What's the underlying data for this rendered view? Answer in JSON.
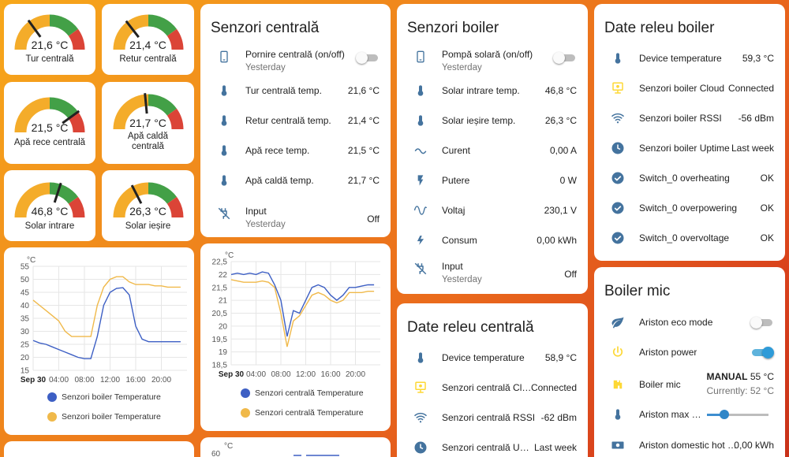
{
  "gauges": [
    {
      "value": "21,6 °C",
      "name": "Tur centrală",
      "level": 0.3
    },
    {
      "value": "21,4 °C",
      "name": "Retur centrală",
      "level": 0.29
    },
    {
      "value": "21,5 °C",
      "name": "Apă rece centrală",
      "level": 0.8
    },
    {
      "value": "21,7 °C",
      "name": "Apă caldă centrală",
      "level": 0.47
    },
    {
      "value": "46,8 °C",
      "name": "Solar intrare",
      "level": 0.6
    },
    {
      "value": "26,3 °C",
      "name": "Solar ieșire",
      "level": 0.35
    }
  ],
  "senzori_centrala": {
    "title": "Senzori centrală",
    "rows": [
      {
        "icon": "phone-icon",
        "name": "Pornire centrală (on/off)",
        "sub": "Yesterday",
        "toggle": "off"
      },
      {
        "icon": "thermometer-icon",
        "name": "Tur centrală temp.",
        "value": "21,6 °C"
      },
      {
        "icon": "thermometer-icon",
        "name": "Retur centrală temp.",
        "value": "21,4 °C"
      },
      {
        "icon": "thermometer-icon",
        "name": "Apă rece temp.",
        "value": "21,5 °C"
      },
      {
        "icon": "thermometer-icon",
        "name": "Apă caldă temp.",
        "value": "21,7 °C"
      },
      {
        "icon": "power-plug-off-icon",
        "name": "Input",
        "sub": "Yesterday",
        "value": "Off"
      }
    ]
  },
  "senzori_boiler": {
    "title": "Senzori boiler",
    "rows": [
      {
        "icon": "phone-icon",
        "name": "Pompă solară (on/off)",
        "sub": "Yesterday",
        "toggle": "off"
      },
      {
        "icon": "thermometer-icon",
        "name": "Solar intrare temp.",
        "value": "46,8 °C"
      },
      {
        "icon": "thermometer-icon",
        "name": "Solar ieșire temp.",
        "value": "26,3 °C"
      },
      {
        "icon": "current-ac-icon",
        "name": "Curent",
        "value": "0,00 A"
      },
      {
        "icon": "flash-icon",
        "name": "Putere",
        "value": "0 W"
      },
      {
        "icon": "sine-wave-icon",
        "name": "Voltaj",
        "value": "230,1 V"
      },
      {
        "icon": "lightning-icon",
        "name": "Consum",
        "value": "0,00 kWh"
      },
      {
        "icon": "power-plug-off-icon",
        "name": "Input",
        "sub": "Yesterday",
        "value": "Off"
      }
    ]
  },
  "date_releu_centrala": {
    "title": "Date releu centrală",
    "rows": [
      {
        "icon": "thermometer-icon",
        "name": "Device temperature",
        "value": "58,9 °C"
      },
      {
        "icon": "cloud-monitor-icon",
        "name": "Senzori centrală Cloud",
        "value": "Connected"
      },
      {
        "icon": "wifi-icon",
        "name": "Senzori centrală RSSI",
        "value": "-62 dBm"
      },
      {
        "icon": "clock-icon",
        "name": "Senzori centrală Upti…",
        "value": "Last week"
      }
    ]
  },
  "date_releu_boiler": {
    "title": "Date releu boiler",
    "rows": [
      {
        "icon": "thermometer-icon",
        "name": "Device temperature",
        "value": "59,3 °C"
      },
      {
        "icon": "cloud-monitor-icon",
        "name": "Senzori boiler Cloud",
        "value": "Connected"
      },
      {
        "icon": "wifi-icon",
        "name": "Senzori boiler RSSI",
        "value": "-56 dBm"
      },
      {
        "icon": "clock-icon",
        "name": "Senzori boiler Uptime",
        "value": "Last week"
      },
      {
        "icon": "check-circle-icon",
        "name": "Switch_0 overheating",
        "value": "OK"
      },
      {
        "icon": "check-circle-icon",
        "name": "Switch_0 overpowering",
        "value": "OK"
      },
      {
        "icon": "check-circle-icon",
        "name": "Switch_0 overvoltage",
        "value": "OK"
      }
    ]
  },
  "boiler_mic": {
    "title": "Boiler mic",
    "eco_label": "Ariston eco mode",
    "eco_toggle": "off",
    "power_label": "Ariston power",
    "power_toggle": "on",
    "heater_label": "Boiler mic",
    "heater_mode": "MANUAL",
    "heater_target": "55 °C",
    "heater_current": "Currently: 52 °C",
    "max_label": "Ariston max …",
    "max_slider": 0.28,
    "domestic_label": "Ariston domestic hot …",
    "domestic_value": "0,00 kWh"
  },
  "chart_unit": "°C",
  "bottom_partial_tick": "60",
  "chart_data": [
    {
      "type": "line",
      "yunit": "°C",
      "ylim": [
        15,
        55
      ],
      "yticks": [
        "55",
        "50",
        "45",
        "40",
        "35",
        "30",
        "25",
        "20",
        "15"
      ],
      "xticks": [
        "Sep 30",
        "04:00",
        "08:00",
        "12:00",
        "16:00",
        "20:00"
      ],
      "x_hours": [
        0,
        1,
        2,
        3,
        4,
        5,
        6,
        7,
        8,
        9,
        10,
        11,
        12,
        13,
        14,
        15,
        16,
        17,
        18,
        19,
        20,
        21,
        22,
        23
      ],
      "series": [
        {
          "name": "Senzori boiler Temperature",
          "color": "#3d5fc4",
          "values": [
            26.5,
            25.5,
            25,
            24,
            23,
            22,
            21,
            20,
            19.5,
            19.5,
            28,
            40,
            45,
            46.5,
            46.8,
            44,
            32,
            27,
            26,
            26,
            26,
            26,
            26,
            26
          ]
        },
        {
          "name": "Senzori boiler Temperature",
          "color": "#f0b94a",
          "values": [
            42,
            40,
            38,
            36,
            34,
            30,
            28,
            28,
            28,
            28,
            40,
            47,
            50,
            51,
            51,
            49,
            48,
            48,
            48,
            47.5,
            47.5,
            47,
            47,
            47
          ]
        }
      ]
    },
    {
      "type": "line",
      "yunit": "°C",
      "ylim": [
        18.5,
        22.5
      ],
      "yticks": [
        "22,5",
        "22",
        "21,5",
        "21",
        "20,5",
        "20",
        "19,5",
        "19",
        "18,5"
      ],
      "xticks": [
        "Sep 30",
        "04:00",
        "08:00",
        "12:00",
        "16:00",
        "20:00"
      ],
      "x_hours": [
        0,
        1,
        2,
        3,
        4,
        5,
        6,
        7,
        8,
        9,
        10,
        11,
        12,
        13,
        14,
        15,
        16,
        17,
        18,
        19,
        20,
        21,
        22,
        23
      ],
      "series": [
        {
          "name": "Senzori centrală Temperature",
          "color": "#3d5fc4",
          "values": [
            22.0,
            22.05,
            22.0,
            22.05,
            22.0,
            22.1,
            22.05,
            21.6,
            21.0,
            19.6,
            20.6,
            20.5,
            21.0,
            21.5,
            21.6,
            21.5,
            21.2,
            21.0,
            21.2,
            21.5,
            21.5,
            21.55,
            21.6,
            21.6
          ]
        },
        {
          "name": "Senzori centrală Temperature",
          "color": "#f0b94a",
          "values": [
            21.8,
            21.75,
            21.7,
            21.7,
            21.7,
            21.75,
            21.7,
            21.5,
            20.5,
            19.2,
            20.2,
            20.4,
            20.8,
            21.2,
            21.3,
            21.2,
            21.0,
            20.9,
            21.0,
            21.3,
            21.3,
            21.3,
            21.35,
            21.35
          ]
        }
      ]
    }
  ]
}
